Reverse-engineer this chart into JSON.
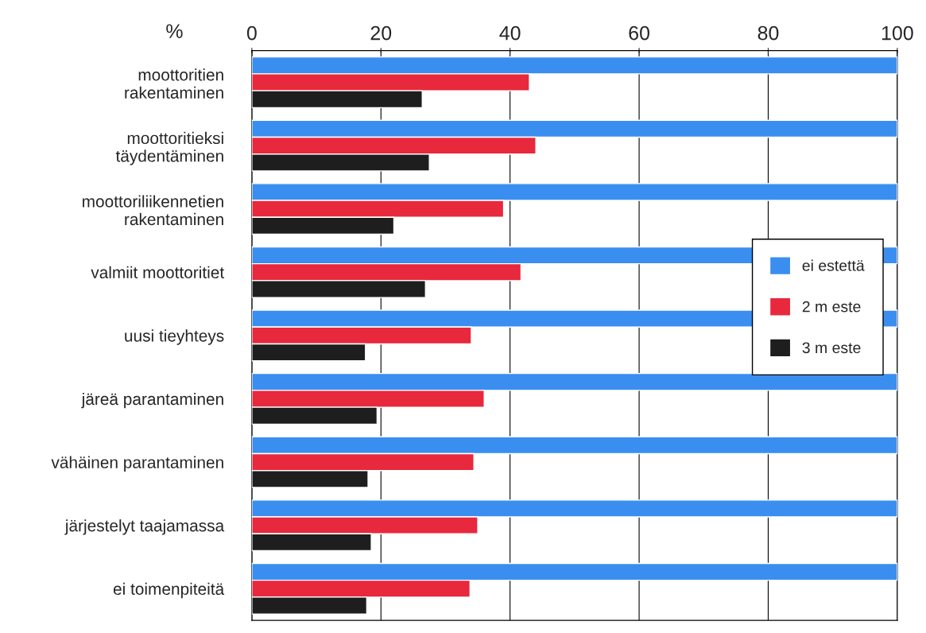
{
  "chart_data": {
    "type": "bar",
    "orientation": "horizontal",
    "xlabel": "%",
    "categories": [
      "moottoritien\nrakentaminen",
      "moottoritieksi\ntäydentäminen",
      "moottoriliikennetien\nrakentaminen",
      "valmiit moottoritiet",
      "uusi tieyhteys",
      "järeä parantaminen",
      "vähäinen parantaminen",
      "järjestelyt taajamassa",
      "ei toimenpiteitä"
    ],
    "series": [
      {
        "name": "ei estettä",
        "color": "#3a8ef0",
        "values": [
          100,
          100,
          100,
          100,
          100,
          100,
          100,
          100,
          100
        ]
      },
      {
        "name": "2 m este",
        "color": "#e8283c",
        "values": [
          43,
          44,
          39,
          41.7,
          34,
          36,
          34.4,
          35,
          33.8
        ]
      },
      {
        "name": "3 m este",
        "color": "#1e1e1e",
        "values": [
          26.4,
          27.5,
          22,
          26.9,
          17.6,
          19.4,
          18,
          18.5,
          17.8
        ]
      }
    ],
    "xlim": [
      0,
      100
    ],
    "xticks": [
      0,
      20,
      40,
      60,
      80,
      100
    ],
    "grid": "x",
    "legend": "right"
  }
}
